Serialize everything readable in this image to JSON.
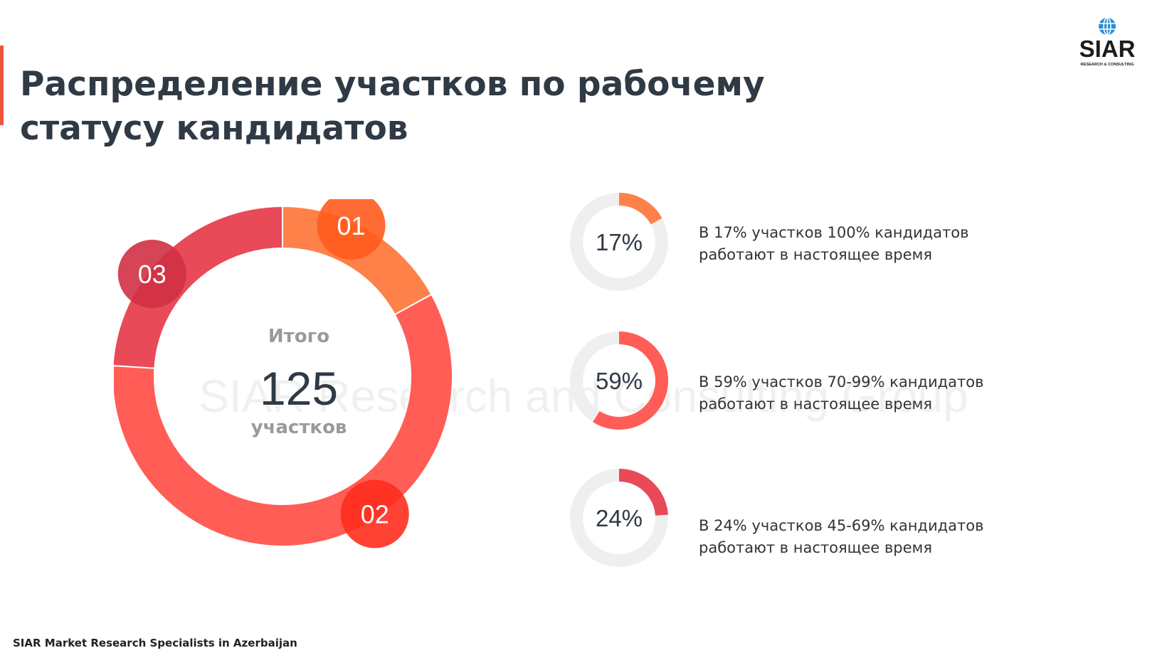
{
  "title": "Распределение участков по рабочему статусу кандидатов",
  "logo": {
    "text": "SIAR",
    "subtext": "RESEARCH & CONSULTING",
    "icon": "globe-icon"
  },
  "watermark": "SIAR Research and Consulting Group",
  "footer": "SIAR Market Research Specialists in Azerbaijan",
  "colors": {
    "segment_01": "#fe8149",
    "segment_02": "#ff5d55",
    "segment_03": "#e84a58",
    "badge_01": "#ff5b1c",
    "badge_02": "#ff2e1e",
    "badge_03": "#d03143",
    "track": "#efefef"
  },
  "chart_data": [
    {
      "type": "pie",
      "variant": "donut",
      "center": {
        "top": "Итого",
        "value": "125",
        "bottom": "участков"
      },
      "categories": [
        "01",
        "02",
        "03"
      ],
      "values": [
        17,
        59,
        24
      ],
      "unit": "%"
    },
    {
      "type": "pie",
      "variant": "progress-rings",
      "items": [
        {
          "badge": "01",
          "value": 17,
          "label": "17%",
          "text": "В 17% участков 100% кандидатов работают в настоящее время"
        },
        {
          "badge": "02",
          "value": 59,
          "label": "59%",
          "text": "В 59% участков 70-99% кандидатов работают в настоящее время"
        },
        {
          "badge": "03",
          "value": 24,
          "label": "24%",
          "text": "В 24% участков 45-69% кандидатов работают в настоящее время"
        }
      ]
    }
  ]
}
